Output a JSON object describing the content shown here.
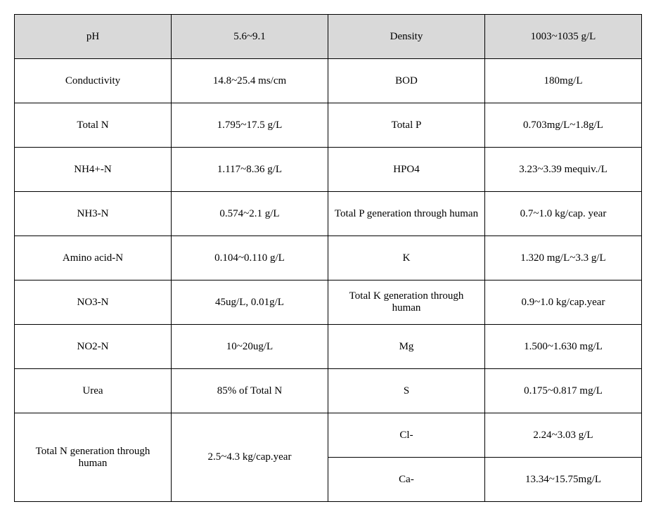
{
  "table": {
    "background_color": "#ffffff",
    "header_background": "#d9d9d9",
    "border_color": "#000000",
    "font_family": "serif",
    "font_size": 15,
    "header_row": [
      "pH",
      "5.6~9.1",
      "Density",
      "1003~1035 g/L"
    ],
    "rows": [
      {
        "c1": "Conductivity",
        "c2": "14.8~25.4 ms/cm",
        "c3": "BOD",
        "c4": "180mg/L"
      },
      {
        "c1": "Total N",
        "c2": "1.795~17.5 g/L",
        "c3": "Total P",
        "c4": "0.703mg/L~1.8g/L"
      },
      {
        "c1": "NH4+-N",
        "c2": "1.117~8.36 g/L",
        "c3": "HPO4",
        "c4": "3.23~3.39 mequiv./L"
      },
      {
        "c1": "NH3-N",
        "c2": "0.574~2.1 g/L",
        "c3": "Total P generation through human",
        "c4": "0.7~1.0 kg/cap. year"
      },
      {
        "c1": "Amino acid-N",
        "c2": "0.104~0.110 g/L",
        "c3": "K",
        "c4": "1.320 mg/L~3.3 g/L"
      },
      {
        "c1": "NO3-N",
        "c2": "45ug/L, 0.01g/L",
        "c3": "Total K generation through human",
        "c4": "0.9~1.0 kg/cap.year"
      },
      {
        "c1": "NO2-N",
        "c2": "10~20ug/L",
        "c3": "Mg",
        "c4": "1.500~1.630 mg/L"
      },
      {
        "c1": "Urea",
        "c2": "85% of Total N",
        "c3": "S",
        "c4": "0.175~0.817 mg/L"
      }
    ],
    "merged_row": {
      "c1": "Total N generation through human",
      "c2": "2.5~4.3 kg/cap.year",
      "c3a": "Cl-",
      "c4a": "2.24~3.03 g/L",
      "c3b": "Ca-",
      "c4b": "13.34~15.75mg/L"
    }
  }
}
